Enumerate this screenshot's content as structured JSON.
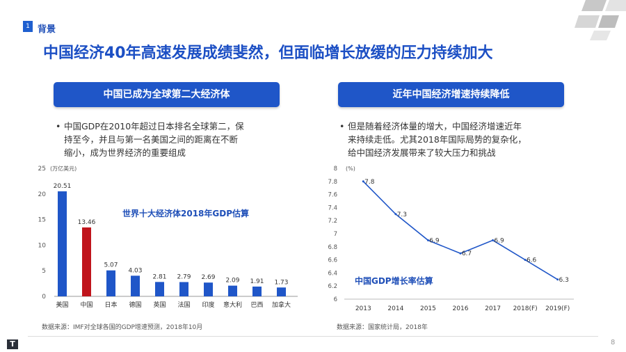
{
  "section": {
    "number": "1",
    "label": "背景"
  },
  "title": "中国经济40年高速发展成绩斐然，但面临增长放缓的压力持续加大",
  "left_panel": {
    "heading": "中国已成为全球第二大经济体",
    "bullet_lines": [
      "中国GDP在2010年超过日本排名全球第二，保",
      "持至今，并且与第一名美国之间的距离在不断",
      "缩小，成为世界经济的重要组成"
    ],
    "source": "数据来源：IMF对全球各国的GDP增速预测，2018年10月"
  },
  "right_panel": {
    "heading": "近年中国经济增速持续降低",
    "bullet_lines": [
      "但是随着经济体量的增大，中国经济增速近年",
      "来持续走低。尤其2018年国际局势的复杂化，",
      "给中国经济发展带来了较大压力和挑战"
    ],
    "source": "数据来源：国家统计局，2018年"
  },
  "chart_data": [
    {
      "type": "bar",
      "title": "世界十大经济体2018年GDP估算",
      "ylabel": "万亿美元",
      "ylim": [
        0,
        25
      ],
      "yticks": [
        "0",
        "5",
        "10",
        "15",
        "20",
        "25"
      ],
      "categories": [
        "美国",
        "中国",
        "日本",
        "德国",
        "英国",
        "法国",
        "印度",
        "意大利",
        "巴西",
        "加拿大"
      ],
      "values": [
        20.51,
        13.46,
        5.07,
        4.03,
        2.81,
        2.79,
        2.69,
        2.09,
        1.91,
        1.73
      ],
      "value_labels": [
        "20.51",
        "13.46",
        "5.07",
        "4.03",
        "2.81",
        "2.79",
        "2.69",
        "2.09",
        "1.91",
        "1.73"
      ],
      "bar_color": "#1f56c8",
      "highlight_color": "#c0141c",
      "highlight_index": 1
    },
    {
      "type": "line",
      "title": "中国GDP增长率估算",
      "ylabel": "%",
      "ylim": [
        6,
        8
      ],
      "yticks": [
        "6",
        "6.2",
        "6.4",
        "6.6",
        "6.8",
        "7",
        "7.2",
        "7.4",
        "7.6",
        "7.8",
        "8"
      ],
      "x": [
        "2013",
        "2014",
        "2015",
        "2016",
        "2017",
        "2018(F)",
        "2019(F)"
      ],
      "values": [
        7.8,
        7.3,
        6.9,
        6.7,
        6.9,
        6.6,
        6.3
      ],
      "value_labels": [
        "7.8",
        "7.3",
        "6.9",
        "6.7",
        "6.9",
        "6.6",
        "6.3"
      ],
      "line_color": "#1f56c8"
    }
  ],
  "footer": {
    "page": "8",
    "logo": "T"
  }
}
